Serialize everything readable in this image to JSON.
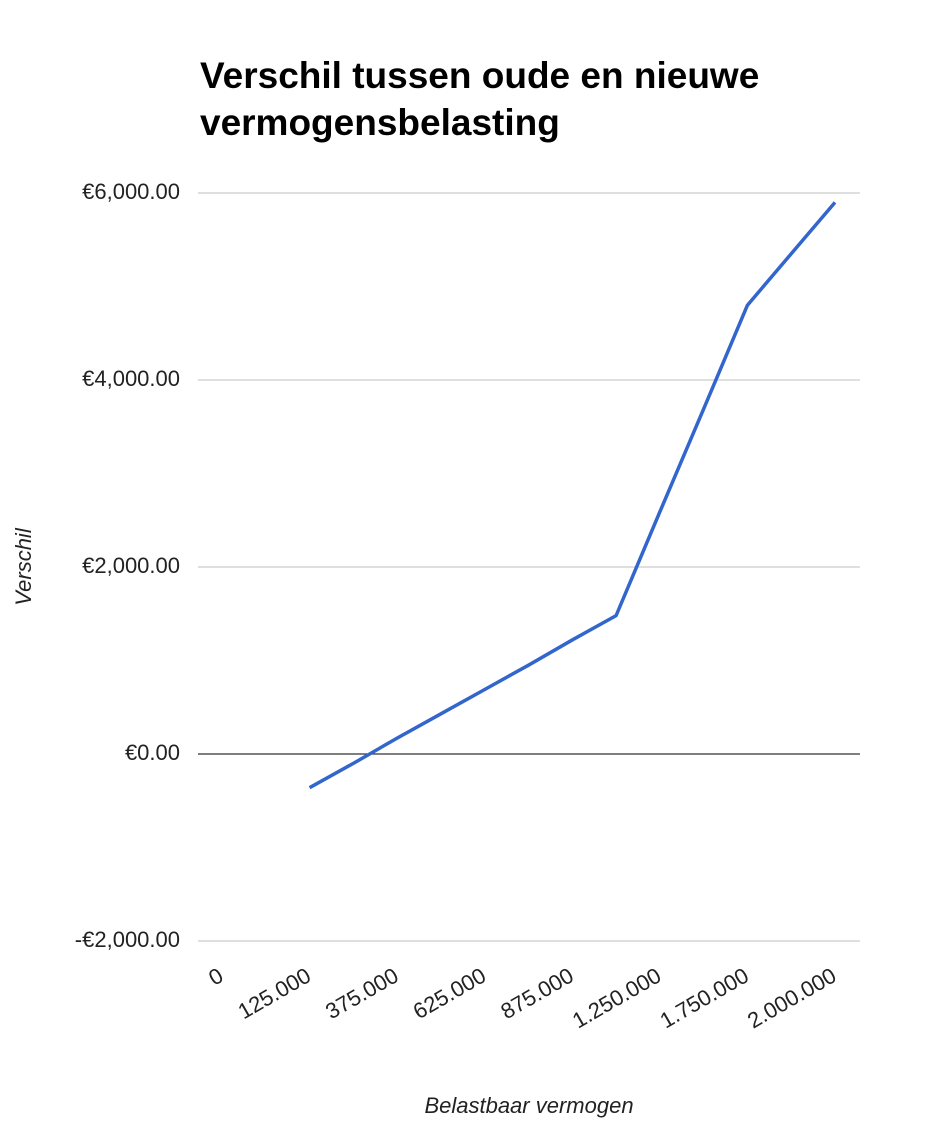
{
  "chart_data": {
    "type": "line",
    "title": "Verschil tussen oude en nieuwe vermogensbelasting",
    "x_label": "Belastbaar vermogen",
    "y_label": "Verschil",
    "categories": [
      "0",
      null,
      "125.000",
      null,
      "375.000",
      null,
      "625.000",
      null,
      "875.000",
      null,
      "1.250.000",
      null,
      "1.750.000",
      null,
      "2.000.000"
    ],
    "series": [
      {
        "name": "Verschil",
        "color": "#3366cc",
        "values": [
          null,
          null,
          -360,
          -100,
          170,
          430,
          690,
          950,
          1220,
          1480,
          2590,
          3690,
          4800,
          5350,
          5900
        ]
      }
    ],
    "ylim": [
      -2000,
      6000
    ],
    "yticks": [
      {
        "value": -2000,
        "label": "-€2,000.00"
      },
      {
        "value": 0,
        "label": "€0.00"
      },
      {
        "value": 2000,
        "label": "€2,000.00"
      },
      {
        "value": 4000,
        "label": "€4,000.00"
      },
      {
        "value": 6000,
        "label": "€6,000.00"
      }
    ],
    "grid": true
  }
}
